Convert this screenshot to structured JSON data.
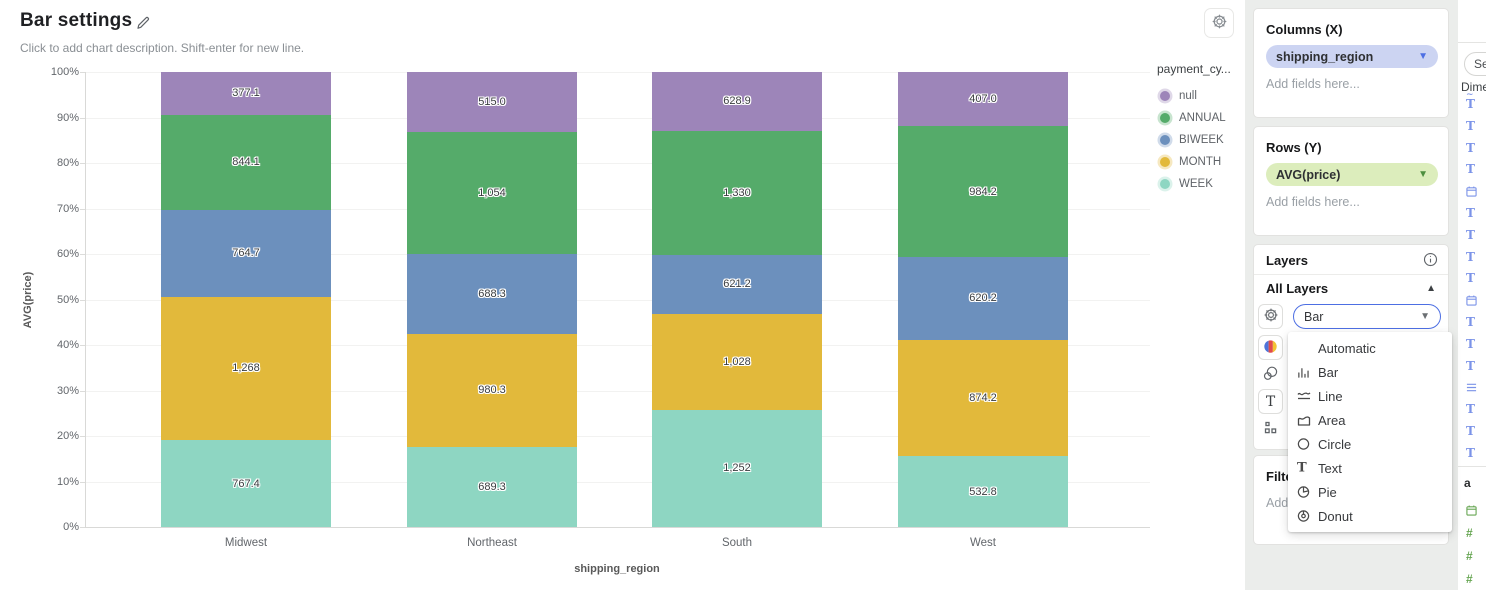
{
  "header": {
    "title": "Bar settings",
    "subtitle": "Click to add chart description. Shift-enter for new line."
  },
  "chart_data": {
    "type": "bar",
    "stack": "normalize-percent",
    "title": "Bar settings",
    "xlabel": "shipping_region",
    "ylabel": "AVG(price)",
    "categories": [
      "Midwest",
      "Northeast",
      "South",
      "West"
    ],
    "series": [
      {
        "name": "null",
        "color": "#9d85b9",
        "values": [
          377.1,
          515.0,
          628.9,
          407.0
        ],
        "value_labels": [
          "377.1",
          "515.0",
          "628.9",
          "407.0"
        ]
      },
      {
        "name": "ANNUAL",
        "color": "#55ab6a",
        "values": [
          844.1,
          1054,
          1330,
          984.2
        ],
        "value_labels": [
          "844.1",
          "1,054",
          "1,330",
          "984.2"
        ]
      },
      {
        "name": "BIWEEK",
        "color": "#6c90bd",
        "values": [
          764.7,
          688.3,
          621.2,
          620.2
        ],
        "value_labels": [
          "764.7",
          "688.3",
          "621.2",
          "620.2"
        ]
      },
      {
        "name": "MONTH",
        "color": "#e2b93b",
        "values": [
          1268,
          980.3,
          1028,
          874.2
        ],
        "value_labels": [
          "1,268",
          "980.3",
          "1,028",
          "874.2"
        ]
      },
      {
        "name": "WEEK",
        "color": "#8ed6c2",
        "values": [
          767.4,
          689.3,
          1252,
          532.8
        ],
        "value_labels": [
          "767.4",
          "689.3",
          "1,252",
          "532.8"
        ]
      }
    ],
    "y_ticks": [
      "100%",
      "90%",
      "80%",
      "70%",
      "60%",
      "50%",
      "40%",
      "30%",
      "20%",
      "10%",
      "0%"
    ],
    "ylim": [
      0,
      1
    ],
    "grid": true,
    "legend": {
      "title": "payment_cy...",
      "position": "right",
      "entries": [
        "null",
        "ANNUAL",
        "BIWEEK",
        "MONTH",
        "WEEK"
      ]
    }
  },
  "panel": {
    "columns": {
      "title": "Columns (X)",
      "field_pill": "shipping_region",
      "placeholder": "Add fields here...",
      "pill_bg": "#ccd4f2",
      "caret_color": "#4d6fe3"
    },
    "rows": {
      "title": "Rows (Y)",
      "field_pill": "AVG(price)",
      "placeholder": "Add fields here...",
      "pill_bg": "#dcedbc",
      "caret_color": "#4d8f3f"
    },
    "layers": {
      "title": "Layers",
      "all_layers_label": "All Layers",
      "mark_type_value": "Bar"
    },
    "filters": {
      "title": "Filters",
      "placeholder": "Add fields here..."
    }
  },
  "mark_type_dropdown": {
    "items": [
      {
        "icon": "none",
        "label": "Automatic"
      },
      {
        "icon": "bar-icon",
        "label": "Bar"
      },
      {
        "icon": "line-icon",
        "label": "Line"
      },
      {
        "icon": "area-icon",
        "label": "Area"
      },
      {
        "icon": "circle-icon",
        "label": "Circle"
      },
      {
        "icon": "text-icon",
        "label": "Text"
      },
      {
        "icon": "pie-icon",
        "label": "Pie"
      },
      {
        "icon": "donut-icon",
        "label": "Donut"
      }
    ]
  },
  "fields_panel": {
    "search_placeholder": "Search",
    "section_label": "Dimensions",
    "partial_label": "a",
    "dimension_color": "#7b93e8",
    "measure_color": "#67a653",
    "dimension_field_types": [
      "string-special",
      "string",
      "string",
      "string",
      "date",
      "string",
      "string",
      "string",
      "string",
      "date",
      "string",
      "string",
      "string",
      "list",
      "string",
      "string",
      "string"
    ],
    "measure_field_types": [
      "date",
      "number",
      "number",
      "number"
    ]
  }
}
